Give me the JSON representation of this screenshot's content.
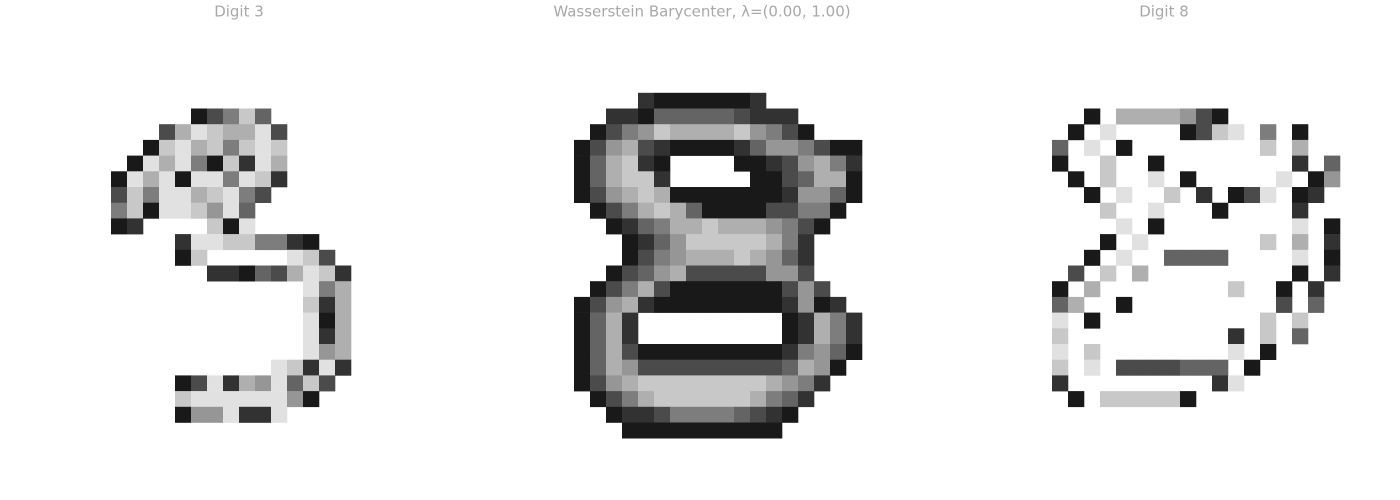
{
  "panels": [
    {
      "title": "Digit 3",
      "pixels": [
        "............................",
        "............................",
        "............................",
        "............................",
        "............................",
        "...........97526",
        ".........73123317",
        "........921325212",
        ".......9131592813",
        "......91319115128",
        "......7251132157",
        "......529112416",
        "......98....291",
        "..........811225589",
        "..........92.....127",
        "............889673128",
        "..................153",
        "..................283",
        "..................193",
        "..................183",
        "..................143",
        "................12818",
        "..........9718341627",
        "..........211111149",
        "..........9441881",
        "............................",
        "............................",
        "............................"
      ]
    },
    {
      "title": "Wasserstein Barycenter, λ=(0.00, 1.00)",
      "pixels": [
        "............................",
        "............................",
        "............................",
        "............................",
        "..........89999998",
        "........889666667888",
        ".......97542333324579",
        "......974378999986445799",
        "......963289....99874358",
        "......963228.....9976339",
        "......974323999999984469",
        ".......9753236999977559",
        "........98653323334579",
        ".........986422222358",
        ".........975433323468",
        "........9764377777447",
        ".......975379999999747",
        "......97438999999998498",
        "......9638.........98358",
        "......9638.........98358",
        "......963799999999985469",
        "......96347777777776349",
        "......9743222222223458",
        ".......97532222223568",
        "........988755556789",
        ".........9999999999",
        "............................",
        "............................"
      ]
    },
    {
      "title": "Digit 8",
      "pixels": [
        "............................",
        "............................",
        "............................",
        "............................",
        "............................",
        ".........9.3333479",
        "........9.1....9721.5.9",
        ".......6.1.9........2.3",
        ".......9..2..9........8.6",
        "........9.2..1.9.....1.94",
        ".........9.1..2.8.971.98",
        "..........2..1...9....8",
        "...........1.9........1.9",
        "..........9.1.......2.3.8",
        ".........9.1..6666....1.9",
        "........7.2.3.........9.8",
        ".......9.3........2..9.8",
        ".......63..9.........7.6",
        ".......1.9..........2.2",
        ".......2..........8.2.6",
        ".......1.2........1.9",
        ".......2.1.7777666.9",
        ".......8.........81",
        "........9.222229",
        "............................",
        "............................",
        "............................",
        "............................"
      ]
    }
  ]
}
